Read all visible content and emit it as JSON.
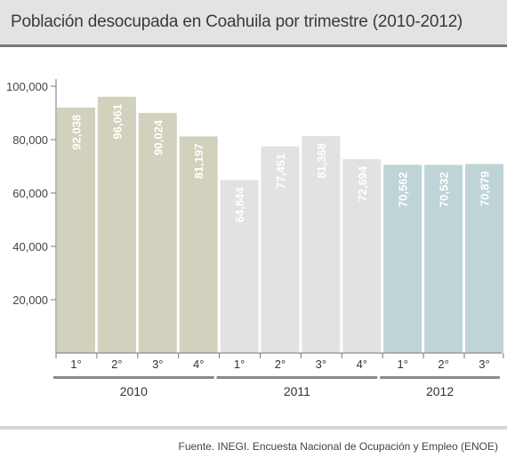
{
  "header": {
    "title": "Población desocupada en Coahuila por trimestre (2010-2012)"
  },
  "footer": {
    "source": "Fuente. INEGI. Encuesta Nacional de Ocupación y Empleo (ENOE)"
  },
  "chart_data": {
    "type": "bar",
    "title": "Población desocupada en Coahuila por trimestre (2010-2012)",
    "xlabel": "",
    "ylabel": "",
    "ylim": [
      0,
      100000
    ],
    "yticks": [
      20000,
      40000,
      60000,
      80000,
      100000
    ],
    "ytick_labels": [
      "20,000",
      "40,000",
      "60,000",
      "80,000",
      "100,000"
    ],
    "grid": false,
    "groups": [
      {
        "label": "2010",
        "color": "#d1d1bd",
        "count": 4
      },
      {
        "label": "2011",
        "color": "#e2e2e2",
        "count": 4
      },
      {
        "label": "2012",
        "color": "#bfd4d6",
        "count": 3
      }
    ],
    "categories": [
      "1°",
      "2°",
      "3°",
      "4°",
      "1°",
      "2°",
      "3°",
      "4°",
      "1°",
      "2°",
      "3°"
    ],
    "values": [
      92038,
      96061,
      90024,
      81197,
      64844,
      77451,
      81368,
      72694,
      70562,
      70532,
      70879
    ],
    "value_labels": [
      "92,038",
      "96,061",
      "90,024",
      "81,197",
      "64,844",
      "77,451",
      "81,368",
      "72,694",
      "70,562",
      "70,532",
      "70,879"
    ]
  }
}
